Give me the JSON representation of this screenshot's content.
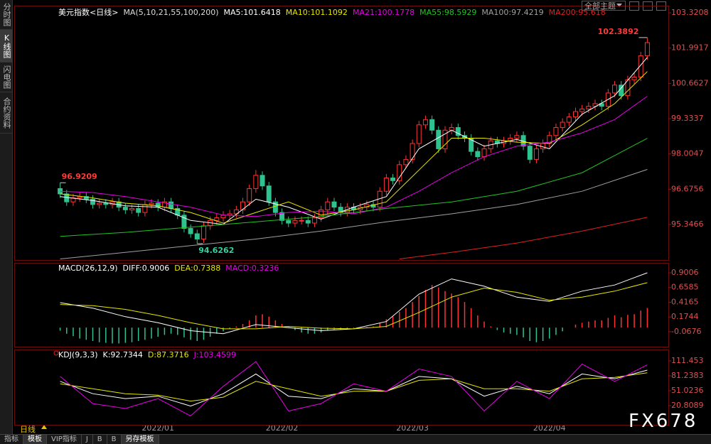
{
  "sidebar_tabs": [
    "分时图",
    "K线图",
    "闪电图",
    "合约资料"
  ],
  "theme_menu": "全部主题",
  "period": "日线",
  "footer_tabs": [
    "指标",
    "模板",
    "VIP指标",
    "J",
    "B",
    "B",
    "另存模板"
  ],
  "watermark": "FX678",
  "chart_data": [
    {
      "type": "candlestick",
      "title": "美元指数<日线>",
      "indicator": "MA(5,10,21,55,100,200)",
      "up_color": "#ff3232",
      "down_color": "#2ec28e",
      "ylim": [
        94.01,
        103.59
      ],
      "yticks": [
        95.3466,
        96.6756,
        98.0047,
        99.3337,
        100.6627,
        101.9917,
        103.3208
      ],
      "xticks": [
        {
          "value": 15,
          "label": "2022/01"
        },
        {
          "value": 34,
          "label": "2022/02"
        },
        {
          "value": 54,
          "label": "2022/03"
        },
        {
          "value": 75,
          "label": "2022/04"
        }
      ],
      "annotations": [
        "102.3892",
        "96.9209",
        "94.6262"
      ],
      "open": [
        96.7,
        96.5,
        96.2,
        96.35,
        96.4,
        96.3,
        96.1,
        96.15,
        96.1,
        96.2,
        96.0,
        95.9,
        95.95,
        95.8,
        96.1,
        96.15,
        96.0,
        96.2,
        95.95,
        95.7,
        95.2,
        95.0,
        94.8,
        95.3,
        95.5,
        95.6,
        95.7,
        95.75,
        95.9,
        96.2,
        96.7,
        97.2,
        96.8,
        96.2,
        95.8,
        95.5,
        95.4,
        95.5,
        95.5,
        95.4,
        95.6,
        95.9,
        96.2,
        96.0,
        95.8,
        96.0,
        95.9,
        96.0,
        96.1,
        96.0,
        96.6,
        97.1,
        97.0,
        97.6,
        97.8,
        98.4,
        99.1,
        99.3,
        98.9,
        98.2,
        98.9,
        99.0,
        98.7,
        98.6,
        98.1,
        97.9,
        98.2,
        98.5,
        98.4,
        98.5,
        98.6,
        98.7,
        98.3,
        97.8,
        98.2,
        98.4,
        98.7,
        99.0,
        99.2,
        99.4,
        99.6,
        99.7,
        99.8,
        99.9,
        99.8,
        100.3,
        100.6,
        100.2,
        100.8,
        100.9,
        101.7
      ],
      "high": [
        96.9209,
        96.65,
        96.5,
        96.55,
        96.55,
        96.45,
        96.3,
        96.3,
        96.35,
        96.35,
        96.15,
        96.1,
        96.1,
        96.25,
        96.3,
        96.3,
        96.35,
        96.35,
        96.1,
        95.85,
        95.35,
        95.15,
        95.45,
        95.65,
        95.75,
        95.85,
        95.9,
        96.05,
        96.35,
        96.85,
        97.4,
        97.35,
        96.95,
        96.35,
        95.95,
        95.65,
        95.65,
        95.65,
        95.65,
        95.75,
        96.05,
        96.35,
        96.35,
        96.15,
        96.15,
        96.15,
        96.15,
        96.25,
        96.25,
        96.75,
        97.25,
        97.25,
        97.75,
        97.95,
        98.55,
        99.25,
        99.45,
        99.45,
        99.05,
        99.05,
        99.15,
        99.15,
        98.85,
        98.75,
        98.25,
        98.35,
        98.65,
        98.65,
        98.65,
        98.75,
        98.85,
        98.85,
        98.45,
        98.35,
        98.55,
        98.85,
        99.15,
        99.35,
        99.55,
        99.75,
        99.85,
        99.95,
        100.05,
        100.05,
        100.45,
        100.75,
        100.75,
        100.95,
        101.05,
        101.85,
        102.3892
      ],
      "low": [
        96.35,
        96.05,
        96.05,
        96.2,
        96.15,
        95.95,
        95.95,
        95.95,
        95.95,
        95.85,
        95.75,
        95.75,
        95.65,
        95.65,
        95.95,
        95.85,
        95.85,
        95.8,
        95.55,
        95.05,
        94.85,
        94.6262,
        94.65,
        95.15,
        95.35,
        95.45,
        95.55,
        95.6,
        95.75,
        96.05,
        96.55,
        96.65,
        96.05,
        95.65,
        95.35,
        95.25,
        95.25,
        95.35,
        95.25,
        95.25,
        95.45,
        95.75,
        95.85,
        95.65,
        95.65,
        95.75,
        95.75,
        95.85,
        95.85,
        95.85,
        96.45,
        96.85,
        96.85,
        97.45,
        97.65,
        98.25,
        98.95,
        98.75,
        98.05,
        98.05,
        98.75,
        98.55,
        98.45,
        97.95,
        97.75,
        97.75,
        98.05,
        98.25,
        98.25,
        98.35,
        98.45,
        98.15,
        97.65,
        97.65,
        98.05,
        98.25,
        98.55,
        98.85,
        99.05,
        99.25,
        99.45,
        99.55,
        99.65,
        99.65,
        99.65,
        100.15,
        100.05,
        100.05,
        100.65,
        100.75,
        101.55
      ],
      "close": [
        96.5,
        96.2,
        96.35,
        96.4,
        96.3,
        96.1,
        96.15,
        96.1,
        96.2,
        96.0,
        95.9,
        95.95,
        95.8,
        96.1,
        96.15,
        96.0,
        96.2,
        95.95,
        95.7,
        95.2,
        95.0,
        94.8,
        95.3,
        95.5,
        95.6,
        95.7,
        95.75,
        95.9,
        96.2,
        96.7,
        97.2,
        96.8,
        96.2,
        95.8,
        95.5,
        95.4,
        95.5,
        95.5,
        95.4,
        95.6,
        95.9,
        96.2,
        96.0,
        95.8,
        96.0,
        95.9,
        96.0,
        96.1,
        96.0,
        96.6,
        97.1,
        97.0,
        97.6,
        97.8,
        98.4,
        99.1,
        99.3,
        98.9,
        98.2,
        98.9,
        99.0,
        98.7,
        98.6,
        98.1,
        97.9,
        98.2,
        98.5,
        98.4,
        98.5,
        98.6,
        98.7,
        98.3,
        97.8,
        98.2,
        98.4,
        98.7,
        99.0,
        99.2,
        99.4,
        99.6,
        99.7,
        99.8,
        99.9,
        99.8,
        100.3,
        100.6,
        100.2,
        100.8,
        100.9,
        101.7,
        102.2
      ],
      "series": [
        {
          "name": "MA5:101.6418",
          "color": "#ffffff",
          "x": [
            0,
            5,
            10,
            15,
            20,
            25,
            30,
            35,
            40,
            45,
            50,
            55,
            60,
            65,
            70,
            75,
            80,
            85,
            90
          ],
          "values": [
            96.4,
            96.25,
            96.05,
            96.0,
            95.5,
            95.35,
            96.3,
            96.0,
            95.55,
            96.0,
            96.4,
            98.2,
            98.9,
            98.3,
            98.55,
            98.2,
            99.5,
            100.2,
            101.6418
          ]
        },
        {
          "name": "MA10:101.1092",
          "color": "#e6e600",
          "x": [
            0,
            5,
            10,
            15,
            20,
            25,
            30,
            35,
            40,
            45,
            50,
            55,
            60,
            65,
            70,
            75,
            80,
            85,
            90
          ],
          "values": [
            96.5,
            96.35,
            96.15,
            96.05,
            95.8,
            95.4,
            95.8,
            96.2,
            95.7,
            95.9,
            96.2,
            97.4,
            98.6,
            98.6,
            98.45,
            98.4,
            99.1,
            99.9,
            101.1092
          ]
        },
        {
          "name": "MA21:100.1778",
          "color": "#e600e6",
          "x": [
            0,
            5,
            10,
            15,
            20,
            25,
            30,
            35,
            40,
            45,
            50,
            55,
            60,
            65,
            70,
            75,
            80,
            85,
            90
          ],
          "values": [
            96.6,
            96.55,
            96.4,
            96.2,
            96.0,
            95.7,
            95.65,
            95.8,
            95.85,
            95.75,
            96.0,
            96.6,
            97.3,
            97.9,
            98.3,
            98.45,
            98.8,
            99.3,
            100.1778
          ]
        },
        {
          "name": "MA55:98.5929",
          "color": "#22c322",
          "x": [
            0,
            10,
            20,
            30,
            40,
            50,
            60,
            70,
            80,
            90
          ],
          "values": [
            94.9,
            95.05,
            95.25,
            95.45,
            95.65,
            95.95,
            96.2,
            96.6,
            97.3,
            98.5929
          ]
        },
        {
          "name": "MA100:97.4219",
          "color": "#a0a0a0",
          "x": [
            0,
            10,
            20,
            30,
            40,
            50,
            60,
            70,
            80,
            90
          ],
          "values": [
            94.05,
            94.3,
            94.55,
            94.8,
            95.1,
            95.45,
            95.75,
            96.1,
            96.6,
            97.4219
          ]
        },
        {
          "name": "MA200:95.618",
          "color": "#e02020",
          "x": [
            52,
            60,
            70,
            80,
            90
          ],
          "values": [
            94.05,
            94.3,
            94.65,
            95.1,
            95.618
          ]
        }
      ]
    },
    {
      "type": "macd",
      "title": "MACD(26,12,9)",
      "up_color": "#ff3232",
      "down_color": "#2ec28e",
      "ylim": [
        -0.313,
        1.064
      ],
      "yticks": [
        -0.0676,
        0.1744,
        0.4165,
        0.6585,
        0.9006
      ],
      "series": [
        {
          "name": "DIFF:0.9006",
          "color": "#ffffff",
          "x": [
            0,
            5,
            10,
            15,
            20,
            25,
            30,
            35,
            40,
            45,
            50,
            55,
            60,
            65,
            70,
            75,
            80,
            85,
            90
          ],
          "values": [
            0.41,
            0.32,
            0.18,
            0.08,
            -0.05,
            -0.1,
            0.05,
            0.0,
            -0.05,
            -0.02,
            0.1,
            0.55,
            0.8,
            0.68,
            0.5,
            0.43,
            0.6,
            0.7,
            0.9006
          ]
        },
        {
          "name": "DEA:0.7388",
          "color": "#e6e600",
          "x": [
            0,
            5,
            10,
            15,
            20,
            25,
            30,
            35,
            40,
            45,
            50,
            55,
            60,
            65,
            70,
            75,
            80,
            85,
            90
          ],
          "values": [
            0.38,
            0.36,
            0.3,
            0.2,
            0.08,
            -0.02,
            -0.02,
            0.02,
            -0.01,
            -0.02,
            0.02,
            0.25,
            0.5,
            0.65,
            0.58,
            0.45,
            0.5,
            0.6,
            0.7388
          ]
        }
      ],
      "histogram": {
        "name": "MACD:0.3236",
        "color": "#e600e6",
        "values": [
          -0.05,
          -0.1,
          -0.14,
          -0.18,
          -0.2,
          -0.22,
          -0.24,
          -0.25,
          -0.26,
          -0.26,
          -0.25,
          -0.24,
          -0.22,
          -0.2,
          -0.18,
          -0.15,
          -0.12,
          -0.1,
          -0.12,
          -0.16,
          -0.2,
          -0.22,
          -0.2,
          -0.15,
          -0.1,
          -0.06,
          -0.02,
          0.02,
          0.06,
          0.12,
          0.2,
          0.22,
          0.18,
          0.12,
          0.06,
          0.0,
          -0.04,
          -0.08,
          -0.1,
          -0.1,
          -0.08,
          -0.05,
          -0.03,
          -0.03,
          -0.02,
          -0.01,
          0.0,
          0.01,
          0.02,
          0.08,
          0.14,
          0.18,
          0.26,
          0.32,
          0.42,
          0.52,
          0.62,
          0.7,
          0.66,
          0.6,
          0.56,
          0.5,
          0.42,
          0.32,
          0.2,
          0.1,
          0.02,
          -0.04,
          -0.08,
          -0.1,
          -0.12,
          -0.16,
          -0.22,
          -0.24,
          -0.22,
          -0.18,
          -0.12,
          -0.06,
          0.0,
          0.05,
          0.08,
          0.1,
          0.12,
          0.12,
          0.16,
          0.2,
          0.17,
          0.21,
          0.22,
          0.28,
          0.3236
        ]
      }
    },
    {
      "type": "kdj",
      "title": "KDJ(9,3,3)",
      "ylim": [
        -18.04,
        134.47
      ],
      "yticks": [
        20.8089,
        51.0236,
        81.2383,
        111.453
      ],
      "series": [
        {
          "name": "K:92.7344",
          "color": "#ffffff",
          "x": [
            0,
            5,
            10,
            15,
            20,
            25,
            30,
            35,
            40,
            45,
            50,
            55,
            60,
            65,
            70,
            75,
            80,
            85,
            90
          ],
          "values": [
            70,
            45,
            35,
            40,
            20,
            45,
            85,
            40,
            35,
            55,
            50,
            80,
            75,
            40,
            60,
            45,
            85,
            75,
            92.7344
          ]
        },
        {
          "name": "D:87.3716",
          "color": "#e6e600",
          "x": [
            0,
            5,
            10,
            15,
            20,
            25,
            30,
            35,
            40,
            45,
            50,
            55,
            60,
            65,
            70,
            75,
            80,
            85,
            90
          ],
          "values": [
            65,
            55,
            45,
            42,
            30,
            38,
            70,
            55,
            40,
            50,
            50,
            72,
            75,
            55,
            55,
            50,
            75,
            78,
            87.3716
          ]
        },
        {
          "name": "J:103.4599",
          "color": "#e600e6",
          "x": [
            0,
            5,
            10,
            15,
            20,
            25,
            30,
            35,
            40,
            45,
            50,
            55,
            60,
            65,
            70,
            75,
            80,
            85,
            90
          ],
          "values": [
            80,
            25,
            15,
            35,
            0,
            60,
            110,
            10,
            25,
            65,
            50,
            95,
            80,
            10,
            70,
            35,
            105,
            70,
            103.4599
          ]
        }
      ]
    }
  ]
}
